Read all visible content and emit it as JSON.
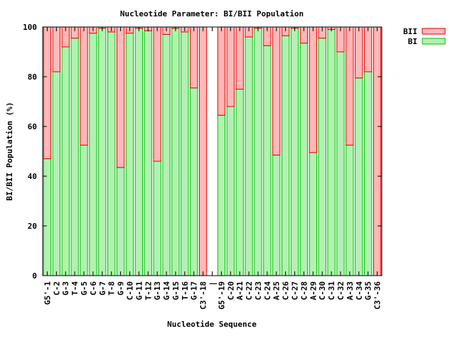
{
  "chart_data": {
    "type": "bar",
    "stacked": true,
    "title": "Nucleotide Parameter: BI/BII Population",
    "xlabel": "Nucleotide Sequence",
    "ylabel": "BI/BII Population (%)",
    "ylim": [
      0,
      100
    ],
    "yticks": [
      "0",
      "20",
      "40",
      "60",
      "80",
      "100"
    ],
    "grid": false,
    "legend_position": "top-right-outside",
    "categories": [
      "G5'-1",
      "C-2",
      "G-3",
      "T-4",
      "G-5",
      "C-6",
      "G-7",
      "T-8",
      "G-9",
      "C-10",
      "G-11",
      "T-12",
      "G-13",
      "G-14",
      "G-15",
      "T-16",
      "G-17",
      "C3'-18",
      "|",
      "G5'-19",
      "C-20",
      "A-21",
      "C-22",
      "C-23",
      "C-24",
      "A-25",
      "C-26",
      "C-27",
      "C-28",
      "A-29",
      "C-30",
      "C-31",
      "C-32",
      "A-33",
      "C-34",
      "G-35",
      "C3'-36"
    ],
    "series": [
      {
        "name": "BI",
        "color_fill": "#b3f0b3",
        "color_stroke": "#00c000",
        "values": [
          47,
          82,
          92,
          95.5,
          52.5,
          97.5,
          99.5,
          98,
          43.5,
          97.5,
          99.5,
          98.5,
          46,
          97,
          99.5,
          98,
          75.5,
          0,
          null,
          64.5,
          68,
          75,
          96,
          99.5,
          92.5,
          48.5,
          96.5,
          99.5,
          93.5,
          49.5,
          95.5,
          99,
          90,
          52.5,
          79.5,
          82,
          0
        ]
      },
      {
        "name": "BII",
        "color_fill": "#ffb8b8",
        "color_stroke": "#e00000",
        "values": [
          53,
          18,
          8,
          4.5,
          47.5,
          2.5,
          0.5,
          2,
          56.5,
          2.5,
          0.5,
          1.5,
          54,
          3,
          0.5,
          2,
          24.5,
          100,
          null,
          35.5,
          32,
          25,
          4,
          0.5,
          7.5,
          51.5,
          3.5,
          0.5,
          6.5,
          50.5,
          4.5,
          1,
          10,
          47.5,
          20.5,
          18,
          100
        ]
      }
    ]
  }
}
